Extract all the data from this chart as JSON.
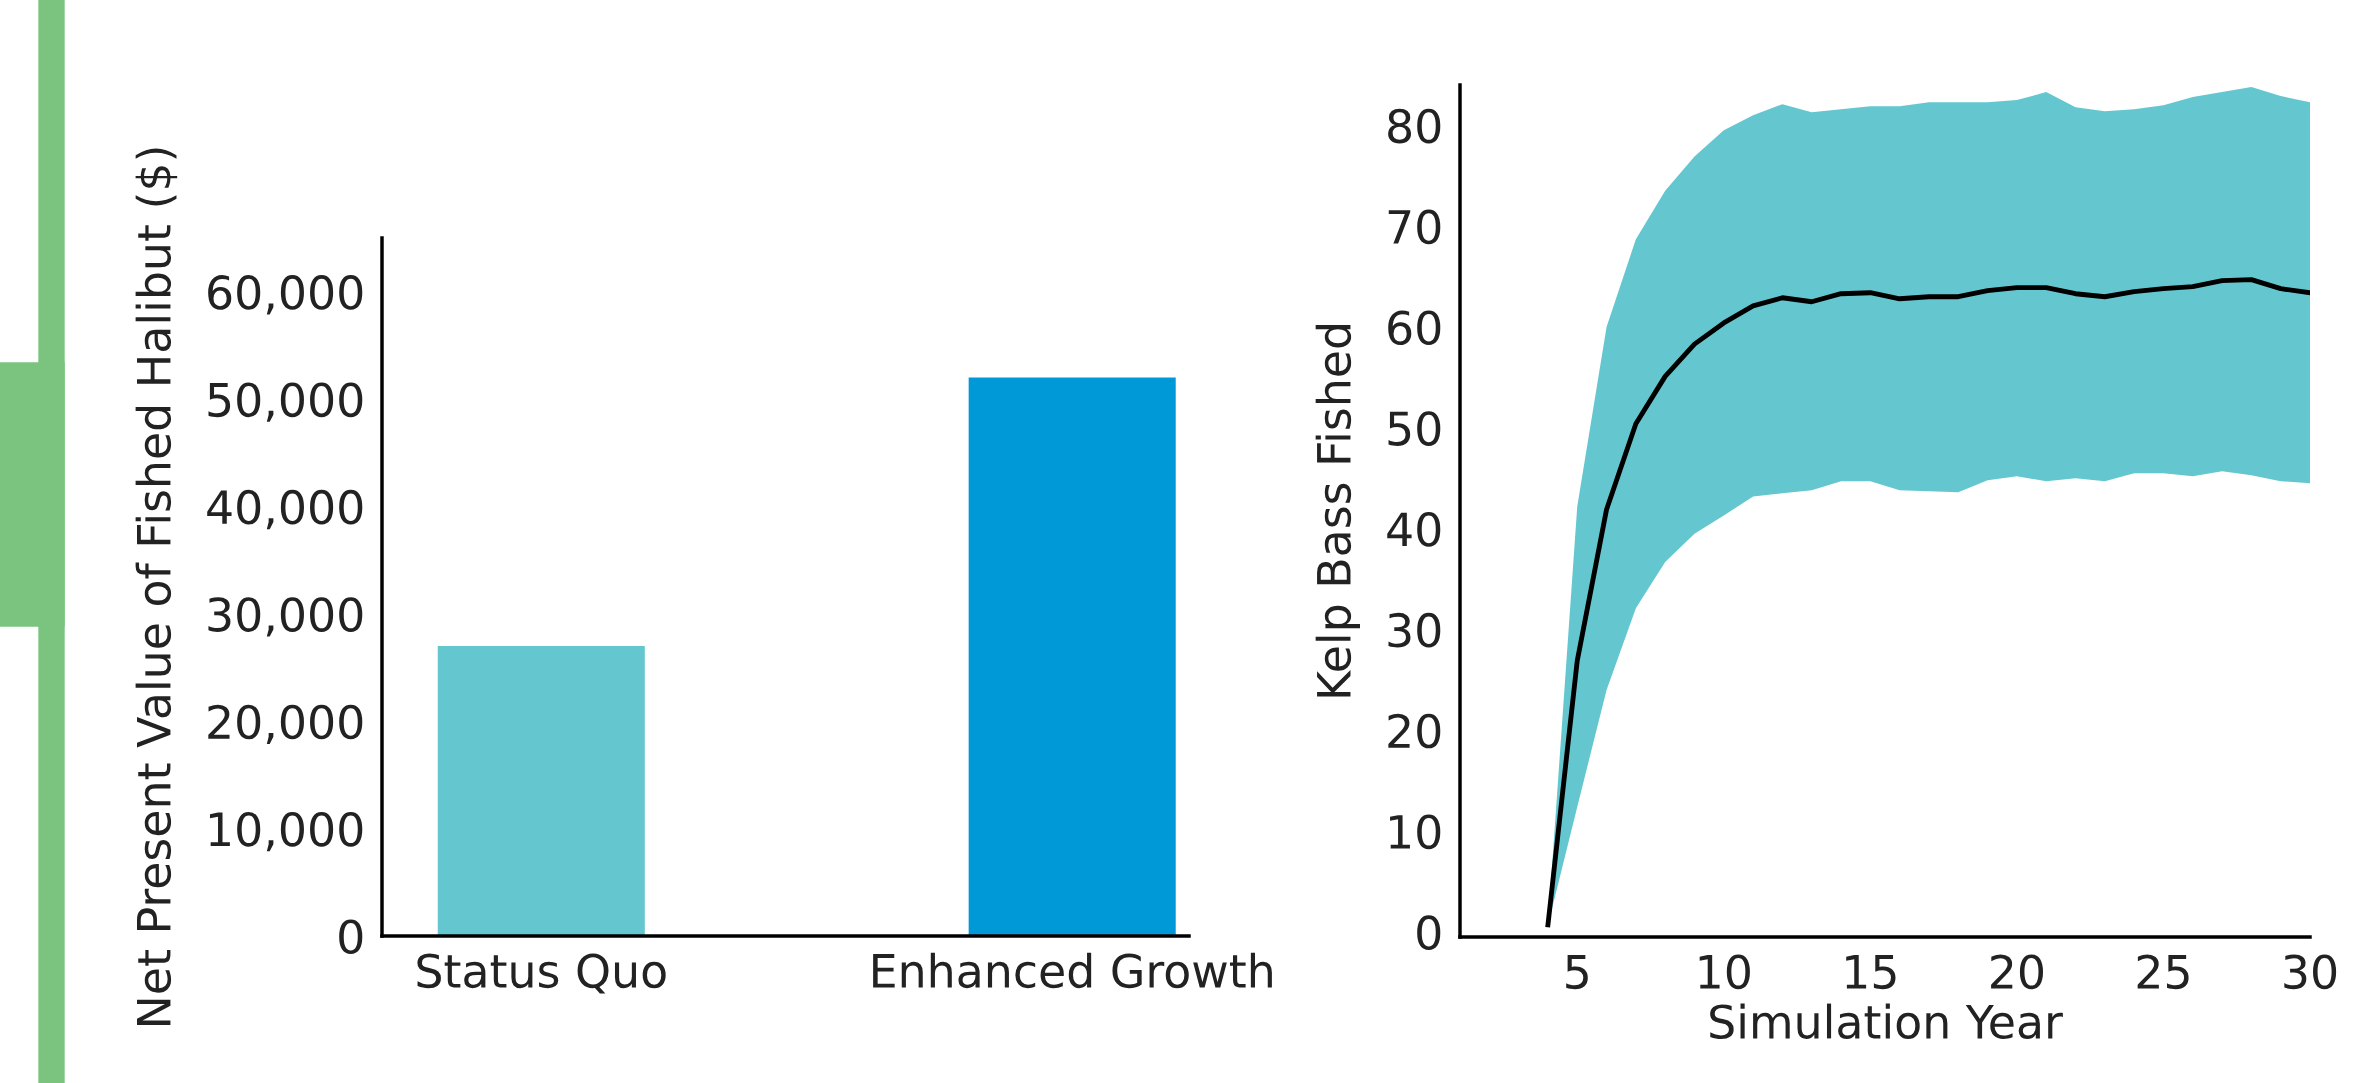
{
  "chart_data": [
    {
      "type": "bar",
      "ylabel": "Net Present Value of Fished Halibut ($)",
      "categories": [
        "Status Quo",
        "Enhanced Growth"
      ],
      "values": [
        27000,
        52000
      ],
      "colors": [
        "#64c7cf",
        "#0099d8"
      ],
      "ylim": [
        0,
        65000
      ],
      "yticks": [
        0,
        {
          "value": 10000,
          "label": "10,000"
        },
        {
          "value": 20000,
          "label": "20,000"
        },
        {
          "value": 30000,
          "label": "30,000"
        },
        {
          "value": 40000,
          "label": "40,000"
        },
        {
          "value": 50000,
          "label": "50,000"
        },
        {
          "value": 60000,
          "label": "60,000"
        }
      ],
      "grid": false,
      "legend": false
    },
    {
      "type": "line",
      "xlabel": "Simulation Year",
      "ylabel": "Kelp Bass Fished",
      "x": [
        4,
        5,
        6,
        7,
        8,
        9,
        10,
        11,
        12,
        13,
        14,
        15,
        16,
        17,
        18,
        19,
        20,
        21,
        22,
        23,
        24,
        25,
        26,
        27,
        28,
        29,
        30
      ],
      "series": [
        {
          "color": "#000000",
          "values": [
            0.7,
            26.9,
            41.9,
            50.4,
            55.1,
            58.3,
            60.4,
            62.1,
            62.9,
            62.5,
            63.3,
            63.4,
            62.8,
            63.0,
            63.0,
            63.6,
            63.9,
            63.9,
            63.3,
            63.0,
            63.5,
            63.8,
            64.0,
            64.6,
            64.7,
            63.8,
            63.4
          ],
          "lower": [
            0.7,
            12.4,
            24.0,
            32.1,
            36.7,
            39.5,
            41.3,
            43.2,
            43.5,
            43.8,
            44.7,
            44.7,
            43.8,
            43.7,
            43.6,
            44.8,
            45.2,
            44.7,
            45.0,
            44.7,
            45.5,
            45.5,
            45.2,
            45.7,
            45.3,
            44.7,
            44.5
          ],
          "upper": [
            0.7,
            42.2,
            60.0,
            68.7,
            73.5,
            76.9,
            79.5,
            81.0,
            82.1,
            81.3,
            81.6,
            81.9,
            81.9,
            82.3,
            82.3,
            82.3,
            82.5,
            83.3,
            81.8,
            81.4,
            81.6,
            82.0,
            82.8,
            83.3,
            83.8,
            82.9,
            82.3
          ]
        }
      ],
      "colors": [
        "#64c7cf"
      ],
      "xlim": [
        1,
        30
      ],
      "xticks": [
        5,
        10,
        15,
        20,
        25,
        30
      ],
      "ylim": [
        -0.5,
        84
      ],
      "yticks": [
        0,
        10,
        20,
        30,
        40,
        50,
        60,
        70,
        80
      ],
      "grid": false,
      "legend": false,
      "marker": "none",
      "line_style": "solid"
    }
  ]
}
